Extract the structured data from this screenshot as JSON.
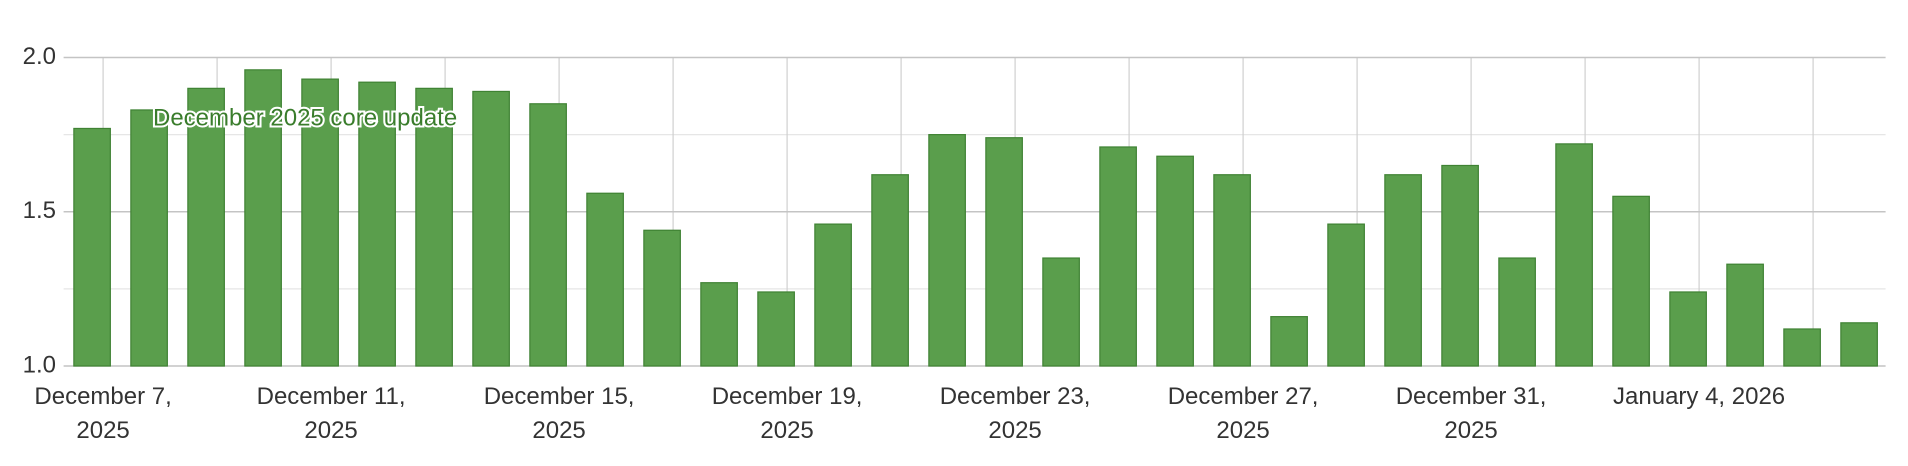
{
  "chart_data": {
    "type": "bar",
    "annotation": "December 2025 core update",
    "categories": [
      "December 7, 2025",
      null,
      null,
      null,
      "December 11, 2025",
      null,
      null,
      null,
      "December 15, 2025",
      null,
      null,
      null,
      "December 19, 2025",
      null,
      null,
      null,
      "December 23, 2025",
      null,
      null,
      null,
      "December 27, 2025",
      null,
      null,
      null,
      "December 31, 2025",
      null,
      null,
      null,
      "January 4, 2026",
      null,
      null,
      null
    ],
    "values": [
      1.77,
      1.83,
      1.9,
      1.96,
      1.93,
      1.92,
      1.9,
      1.89,
      1.85,
      1.56,
      1.44,
      1.27,
      1.24,
      1.46,
      1.62,
      1.75,
      1.74,
      1.35,
      1.71,
      1.68,
      1.62,
      1.16,
      1.46,
      1.62,
      1.65,
      1.35,
      1.72,
      1.55,
      1.24,
      1.33,
      1.12,
      1.14
    ],
    "color": "#5a9e4c",
    "ylim": [
      1.0,
      2.0
    ],
    "yticks": [
      {
        "value": 1,
        "label": "1.0"
      },
      {
        "value": 1.5,
        "label": "1.5"
      },
      {
        "value": 2,
        "label": "2.0"
      }
    ],
    "minor_yticks": [
      1.25,
      1.75
    ],
    "grid": true
  }
}
